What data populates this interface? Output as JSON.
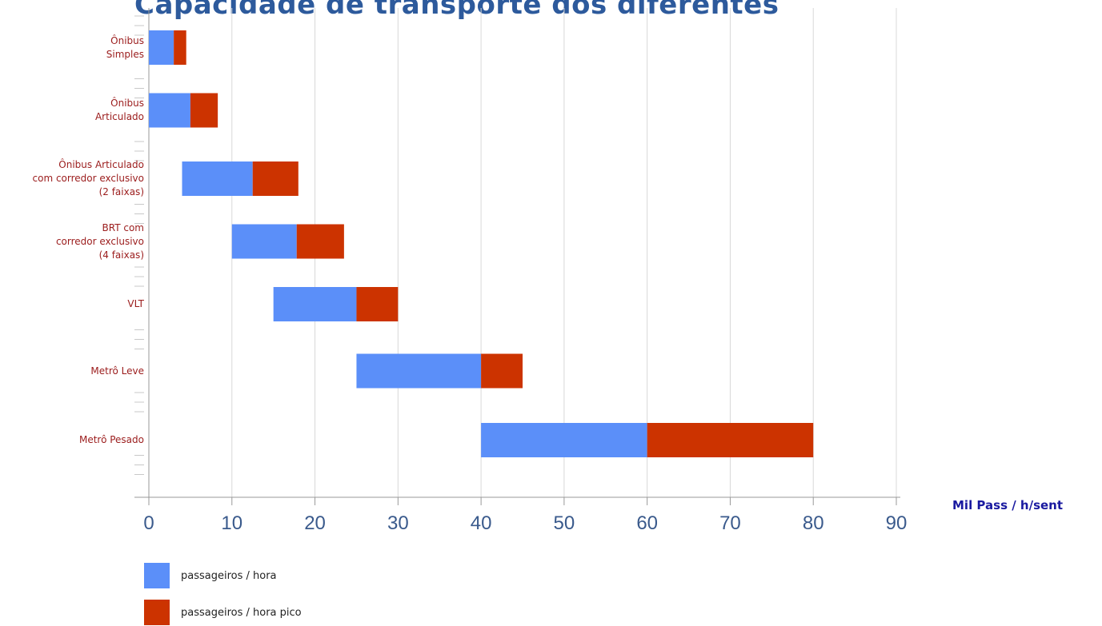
{
  "title": "Capacidade de transporte dos diferentes",
  "unit_label": "Mil Pass / h/sent",
  "colors": {
    "base": "#5b8ff9",
    "pico": "#cc3300",
    "grid": "#d8d8d8",
    "axis": "#999999",
    "tick_text": "#3a5a8c"
  },
  "chart_data": {
    "type": "bar",
    "orientation": "horizontal",
    "stacked": true,
    "categories": [
      "Ônibus\nSimples",
      "Ônibus\nArticulado",
      "Ônibus Articulado\ncom corredor exclusivo\n(2 faixas)",
      "BRT com\ncorredor exclusivo\n(4 faixas)",
      "VLT",
      "Metrô Leve",
      "Metrô Pesado"
    ],
    "series": [
      {
        "name": "passageiros / hora",
        "color": "#5b8ff9",
        "ranges": [
          [
            0,
            3
          ],
          [
            0,
            5
          ],
          [
            4,
            12.5
          ],
          [
            10,
            17.8
          ],
          [
            15,
            25
          ],
          [
            25,
            40
          ],
          [
            40,
            60
          ]
        ]
      },
      {
        "name": "passageiros / hora pico",
        "color": "#cc3300",
        "ranges": [
          [
            3,
            4.5
          ],
          [
            5,
            8.3
          ],
          [
            12.5,
            18
          ],
          [
            17.8,
            23.5
          ],
          [
            25,
            30
          ],
          [
            40,
            45
          ],
          [
            60,
            80
          ]
        ]
      }
    ],
    "xlim": [
      0,
      90
    ],
    "xticks": [
      0,
      10,
      20,
      30,
      40,
      50,
      60,
      70,
      80,
      90
    ],
    "grid": true,
    "legend_position": "bottom-left",
    "xlabel": "Mil Pass / h/sent"
  }
}
